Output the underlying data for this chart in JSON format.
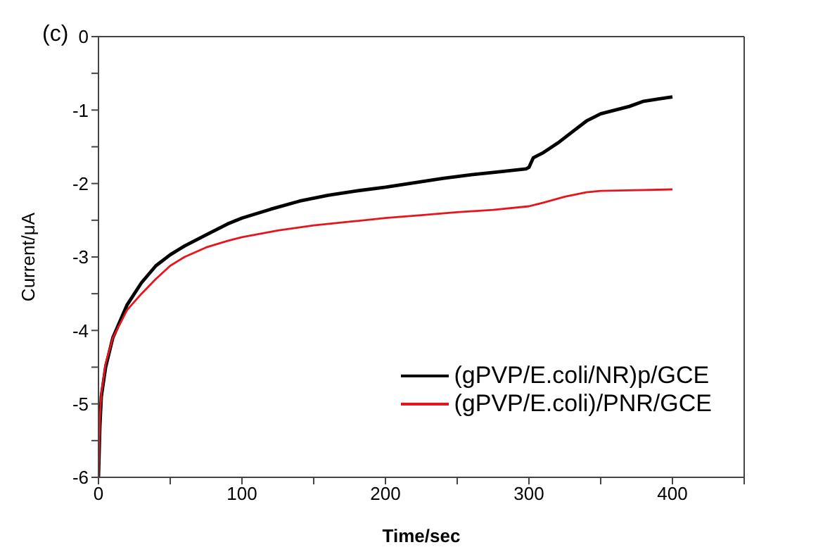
{
  "chart_data": {
    "type": "line",
    "annotations": [
      "(c)"
    ],
    "xlabel": "Time/sec",
    "ylabel": "Current/μA",
    "xlim": [
      0,
      450
    ],
    "xticks": [
      0,
      {
        "value": 50,
        "label": null
      },
      100,
      {
        "value": 150,
        "label": null
      },
      200,
      {
        "value": 250,
        "label": null
      },
      300,
      {
        "value": 350,
        "label": null
      },
      400,
      {
        "value": 450,
        "label": null
      }
    ],
    "ylim": [
      -6,
      0
    ],
    "yticks": [
      -6,
      {
        "value": -5.5,
        "label": null
      },
      -5,
      {
        "value": -4.5,
        "label": null
      },
      -4,
      {
        "value": -3.5,
        "label": null
      },
      -3,
      {
        "value": -2.5,
        "label": null
      },
      -2,
      {
        "value": -1.5,
        "label": null
      },
      -1,
      {
        "value": -0.5,
        "label": null
      },
      0
    ],
    "grid": false,
    "legend": "bottom right",
    "marker": "none",
    "line_style": "solid",
    "series": [
      {
        "name": "(gPVP/E.coli/NR)p/GCE",
        "color": "#000000",
        "x": [
          0,
          1,
          2,
          5,
          10,
          20,
          30,
          40,
          50,
          60,
          75,
          90,
          100,
          120,
          140,
          160,
          180,
          200,
          220,
          240,
          260,
          280,
          298,
          300,
          303,
          310,
          320,
          330,
          340,
          350,
          360,
          370,
          380,
          390,
          400
        ],
        "values": [
          -6,
          -5.3,
          -4.9,
          -4.5,
          -4.1,
          -3.65,
          -3.35,
          -3.12,
          -2.97,
          -2.85,
          -2.7,
          -2.55,
          -2.47,
          -2.35,
          -2.24,
          -2.16,
          -2.1,
          -2.05,
          -1.99,
          -1.93,
          -1.88,
          -1.84,
          -1.8,
          -1.78,
          -1.65,
          -1.58,
          -1.45,
          -1.3,
          -1.15,
          -1.05,
          -1,
          -0.95,
          -0.88,
          -0.85,
          -0.82
        ]
      },
      {
        "name": "(gPVP/E.coli)/PNR/GCE",
        "color": "#e8141c",
        "x": [
          0,
          1,
          2,
          5,
          10,
          20,
          30,
          40,
          50,
          60,
          75,
          90,
          100,
          125,
          150,
          175,
          200,
          225,
          250,
          275,
          300,
          310,
          325,
          340,
          350,
          375,
          400
        ],
        "values": [
          -6,
          -5.2,
          -4.85,
          -4.45,
          -4.1,
          -3.72,
          -3.5,
          -3.3,
          -3.12,
          -3,
          -2.87,
          -2.78,
          -2.73,
          -2.64,
          -2.57,
          -2.52,
          -2.47,
          -2.43,
          -2.39,
          -2.36,
          -2.31,
          -2.26,
          -2.18,
          -2.12,
          -2.1,
          -2.09,
          -2.08
        ]
      }
    ]
  }
}
